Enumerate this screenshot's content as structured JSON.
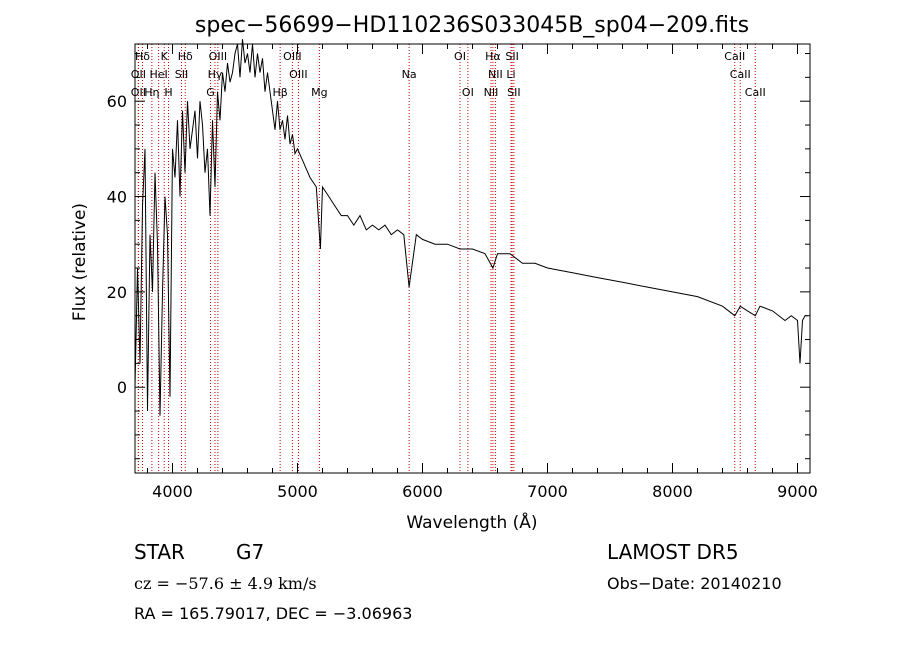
{
  "chart_data": {
    "type": "line",
    "title": "spec−56699−HD110236S033045B_sp04−209.fits",
    "xlabel": "Wavelength (Å)",
    "ylabel": "Flux (relative)",
    "xlim": [
      3700,
      9100
    ],
    "ylim": [
      -18,
      72
    ],
    "xticks": [
      4000,
      5000,
      6000,
      7000,
      8000,
      9000
    ],
    "yticks": [
      0,
      20,
      40,
      60
    ],
    "grid": false,
    "series": [
      {
        "x": [
          3700,
          3720,
          3740,
          3760,
          3780,
          3800,
          3820,
          3840,
          3860,
          3880,
          3900,
          3920,
          3940,
          3960,
          3980,
          4000,
          4020,
          4040,
          4060,
          4080,
          4100,
          4120,
          4140,
          4160,
          4180,
          4200,
          4220,
          4240,
          4260,
          4280,
          4300,
          4320,
          4340,
          4360,
          4380,
          4400,
          4420,
          4440,
          4460,
          4480,
          4500,
          4520,
          4540,
          4560,
          4580,
          4600,
          4620,
          4640,
          4660,
          4680,
          4700,
          4720,
          4740,
          4760,
          4780,
          4800,
          4820,
          4840,
          4860,
          4880,
          4900,
          4920,
          4940,
          4960,
          4980,
          5000,
          5050,
          5100,
          5150,
          5183,
          5200,
          5250,
          5300,
          5350,
          5400,
          5450,
          5500,
          5550,
          5600,
          5650,
          5700,
          5750,
          5800,
          5850,
          5893,
          5950,
          6000,
          6100,
          6200,
          6300,
          6400,
          6500,
          6563,
          6600,
          6700,
          6800,
          6900,
          7000,
          7200,
          7400,
          7600,
          7800,
          8000,
          8200,
          8400,
          8498,
          8542,
          8600,
          8662,
          8700,
          8800,
          8900,
          8950,
          9000,
          9020,
          9040,
          9060,
          9080
        ],
        "y": [
          0,
          25,
          5,
          38,
          50,
          -5,
          32,
          20,
          45,
          30,
          -6,
          20,
          40,
          32,
          -2,
          50,
          44,
          56,
          40,
          58,
          45,
          60,
          50,
          54,
          58,
          48,
          60,
          55,
          45,
          50,
          36,
          56,
          42,
          62,
          56,
          66,
          62,
          68,
          64,
          66,
          70,
          72,
          65,
          73,
          68,
          70,
          66,
          72,
          65,
          70,
          66,
          69,
          62,
          66,
          62,
          58,
          54,
          60,
          54,
          56,
          52,
          57,
          51,
          53,
          49,
          50,
          47,
          44,
          42,
          29,
          42,
          40,
          38,
          36,
          36,
          34,
          36,
          33,
          34,
          33,
          34,
          32,
          33,
          32,
          21,
          32,
          31,
          30,
          30,
          29,
          29,
          28,
          25,
          28,
          28,
          26,
          26,
          25,
          24,
          23,
          22,
          21,
          20,
          19,
          17,
          15,
          17,
          16,
          15,
          17,
          16,
          14,
          15,
          14,
          5,
          14,
          15,
          15
        ]
      }
    ],
    "lines": [
      {
        "name": "Hδ",
        "w": 3760,
        "row": 0
      },
      {
        "name": "K",
        "w": 3934,
        "row": 0
      },
      {
        "name": "Hδ",
        "w": 4102,
        "row": 0
      },
      {
        "name": "OIII",
        "w": 4363,
        "row": 0
      },
      {
        "name": "OIII",
        "w": 4959,
        "row": 0
      },
      {
        "name": "OI",
        "w": 6300,
        "row": 0
      },
      {
        "name": "Hα",
        "w": 6563,
        "row": 0
      },
      {
        "name": "SII",
        "w": 6717,
        "row": 0
      },
      {
        "name": "CaII",
        "w": 8498,
        "row": 0
      },
      {
        "name": "OII",
        "w": 3727,
        "row": 1
      },
      {
        "name": "HeI",
        "w": 3889,
        "row": 1
      },
      {
        "name": "SII",
        "w": 4072,
        "row": 1
      },
      {
        "name": "Hγ",
        "w": 4340,
        "row": 1
      },
      {
        "name": "OIII",
        "w": 5007,
        "row": 1
      },
      {
        "name": "Na",
        "w": 5893,
        "row": 1
      },
      {
        "name": "NII",
        "w": 6583,
        "row": 1
      },
      {
        "name": "Li",
        "w": 6708,
        "row": 1
      },
      {
        "name": "CaII",
        "w": 8542,
        "row": 1
      },
      {
        "name": "OII",
        "w": 3727,
        "row": 2
      },
      {
        "name": "Hη",
        "w": 3835,
        "row": 2
      },
      {
        "name": "H",
        "w": 3968,
        "row": 2
      },
      {
        "name": "G",
        "w": 4304,
        "row": 2
      },
      {
        "name": "Hβ",
        "w": 4861,
        "row": 2
      },
      {
        "name": "Mg",
        "w": 5175,
        "row": 2
      },
      {
        "name": "OI",
        "w": 6363,
        "row": 2
      },
      {
        "name": "NII",
        "w": 6548,
        "row": 2
      },
      {
        "name": "SII",
        "w": 6731,
        "row": 2
      },
      {
        "name": "CaII",
        "w": 8662,
        "row": 2
      }
    ],
    "line_color": "#cc0000"
  },
  "info": {
    "object_class": "STAR",
    "subclass": "G7",
    "survey": "LAMOST DR5",
    "cz": "cz = −57.6 ± 4.9 km/s",
    "obs_date": "Obs−Date: 20140210",
    "coords": "RA = 165.79017, DEC =  −3.06963"
  }
}
